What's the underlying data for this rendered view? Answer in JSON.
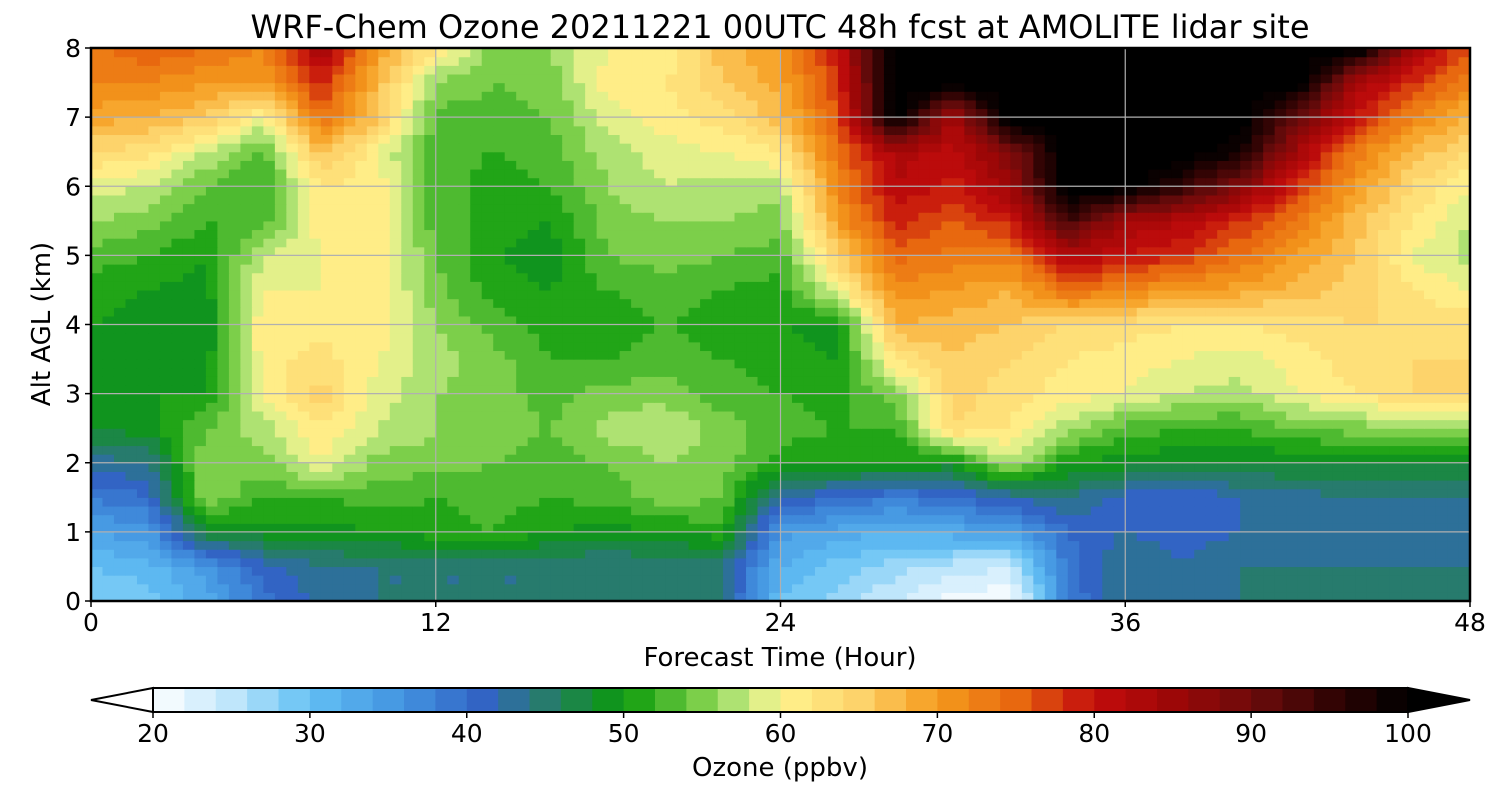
{
  "chart_data": {
    "type": "heatmap",
    "title": "WRF-Chem Ozone  20211221 00UTC 48h fcst at AMOLITE lidar site",
    "xlabel": "Forecast Time (Hour)",
    "ylabel": "Alt AGL (km)",
    "xlim": [
      0,
      48
    ],
    "ylim": [
      0,
      8
    ],
    "x_ticks": [
      "0",
      "12",
      "24",
      "36",
      "48"
    ],
    "y_ticks": [
      "0",
      "1",
      "2",
      "3",
      "4",
      "5",
      "6",
      "7",
      "8"
    ],
    "grid": true,
    "x": [
      0,
      2,
      4,
      6,
      8,
      10,
      12,
      14,
      16,
      18,
      20,
      22,
      24,
      26,
      28,
      30,
      32,
      34,
      36,
      38,
      40,
      42,
      44,
      46,
      48
    ],
    "y": [
      0,
      0.5,
      1,
      1.5,
      2,
      2.5,
      3,
      3.5,
      4,
      4.5,
      5,
      5.5,
      6,
      6.5,
      7,
      7.5,
      8
    ],
    "z": [
      [
        28,
        29,
        33,
        39,
        43,
        44,
        44,
        44,
        44,
        44,
        44,
        44,
        30,
        27,
        24,
        21,
        20,
        38,
        44,
        43,
        44,
        44,
        44,
        44,
        44
      ],
      [
        30,
        31,
        35,
        41,
        44,
        44,
        44,
        44,
        44,
        44,
        44,
        44,
        32,
        29,
        27,
        25,
        24,
        39,
        44,
        42,
        44,
        44,
        44,
        44,
        44
      ],
      [
        34,
        35,
        48,
        49,
        49,
        50,
        51,
        52,
        50,
        49,
        50,
        51,
        35,
        33,
        32,
        33,
        34,
        40,
        42,
        41,
        42,
        43,
        43,
        43,
        43
      ],
      [
        38,
        40,
        56,
        52,
        52,
        53,
        52,
        53,
        52,
        53,
        55,
        54,
        42,
        40,
        38,
        40,
        42,
        44,
        41,
        40,
        42,
        43,
        44,
        44,
        44
      ],
      [
        43,
        44,
        56,
        55,
        60,
        55,
        55,
        54,
        53,
        54,
        56,
        55,
        51,
        50,
        50,
        49,
        58,
        50,
        49,
        48,
        48,
        48,
        48,
        48,
        48
      ],
      [
        48,
        49,
        54,
        57,
        62,
        58,
        56,
        55,
        54,
        57,
        58,
        55,
        53,
        52,
        52,
        64,
        62,
        57,
        53,
        52,
        52,
        54,
        55,
        56,
        56
      ],
      [
        49,
        50,
        50,
        60,
        65,
        59,
        56,
        55,
        53,
        55,
        55,
        53,
        52,
        51,
        55,
        65,
        63,
        61,
        60,
        58,
        57,
        60,
        62,
        64,
        64
      ],
      [
        49,
        49,
        49,
        61,
        63,
        60,
        57,
        55,
        52,
        52,
        53,
        52,
        51,
        50,
        62,
        66,
        64,
        62,
        61,
        60,
        59,
        61,
        63,
        64,
        64
      ],
      [
        50,
        49,
        48,
        62,
        61,
        61,
        56,
        53,
        51,
        51,
        52,
        51,
        50,
        49,
        68,
        67,
        66,
        64,
        63,
        62,
        62,
        63,
        64,
        64,
        63
      ],
      [
        51,
        50,
        49,
        60,
        60,
        61,
        55,
        51,
        50,
        52,
        53,
        52,
        51,
        60,
        71,
        70,
        68,
        74,
        72,
        70,
        69,
        67,
        65,
        62,
        60
      ],
      [
        53,
        52,
        50,
        58,
        60,
        61,
        54,
        50,
        49,
        54,
        55,
        54,
        53,
        65,
        75,
        73,
        73,
        82,
        80,
        78,
        74,
        70,
        66,
        60,
        57
      ],
      [
        56,
        55,
        52,
        53,
        61,
        61,
        53,
        51,
        50,
        55,
        56,
        56,
        55,
        70,
        79,
        76,
        79,
        94,
        84,
        82,
        78,
        73,
        67,
        62,
        58
      ],
      [
        59,
        58,
        54,
        52,
        62,
        61,
        53,
        51,
        52,
        56,
        58,
        57,
        57,
        72,
        82,
        79,
        85,
        102,
        102,
        95,
        88,
        78,
        70,
        64,
        60
      ],
      [
        64,
        63,
        58,
        53,
        67,
        60,
        53,
        52,
        53,
        57,
        59,
        60,
        62,
        74,
        83,
        81,
        88,
        102,
        102,
        102,
        98,
        84,
        73,
        67,
        64
      ],
      [
        69,
        68,
        66,
        60,
        74,
        66,
        53,
        53,
        54,
        59,
        61,
        63,
        67,
        76,
        102,
        83,
        102,
        102,
        102,
        102,
        102,
        90,
        80,
        72,
        68
      ],
      [
        72,
        72,
        70,
        70,
        79,
        67,
        56,
        54,
        55,
        61,
        62,
        66,
        69,
        78,
        102,
        102,
        102,
        102,
        102,
        102,
        102,
        102,
        84,
        78,
        72
      ],
      [
        73,
        76,
        74,
        72,
        84,
        70,
        62,
        55,
        56,
        60,
        60,
        67,
        70,
        80,
        102,
        102,
        102,
        102,
        102,
        102,
        102,
        102,
        102,
        84,
        76
      ]
    ],
    "colorbar": {
      "label": "Ozone  (ppbv)",
      "min": 20,
      "max": 100,
      "ticks": [
        "20",
        "30",
        "40",
        "50",
        "60",
        "70",
        "80",
        "90",
        "100"
      ],
      "extend": "both"
    },
    "colormap": [
      [
        20,
        "#ffffff"
      ],
      [
        25,
        "#bfe6fb"
      ],
      [
        30,
        "#62c0f4"
      ],
      [
        36,
        "#4292e0"
      ],
      [
        41,
        "#3264c4"
      ],
      [
        45,
        "#277b6d"
      ],
      [
        50,
        "#0a9a0a"
      ],
      [
        55,
        "#7ccf4a"
      ],
      [
        58,
        "#c7ec86"
      ],
      [
        60,
        "#fff38e"
      ],
      [
        65,
        "#fdd36b"
      ],
      [
        70,
        "#f59b1d"
      ],
      [
        75,
        "#e8680f"
      ],
      [
        80,
        "#c30c0c"
      ],
      [
        85,
        "#9c0707"
      ],
      [
        90,
        "#6e0b0b"
      ],
      [
        95,
        "#330404"
      ],
      [
        100,
        "#000000"
      ]
    ]
  }
}
